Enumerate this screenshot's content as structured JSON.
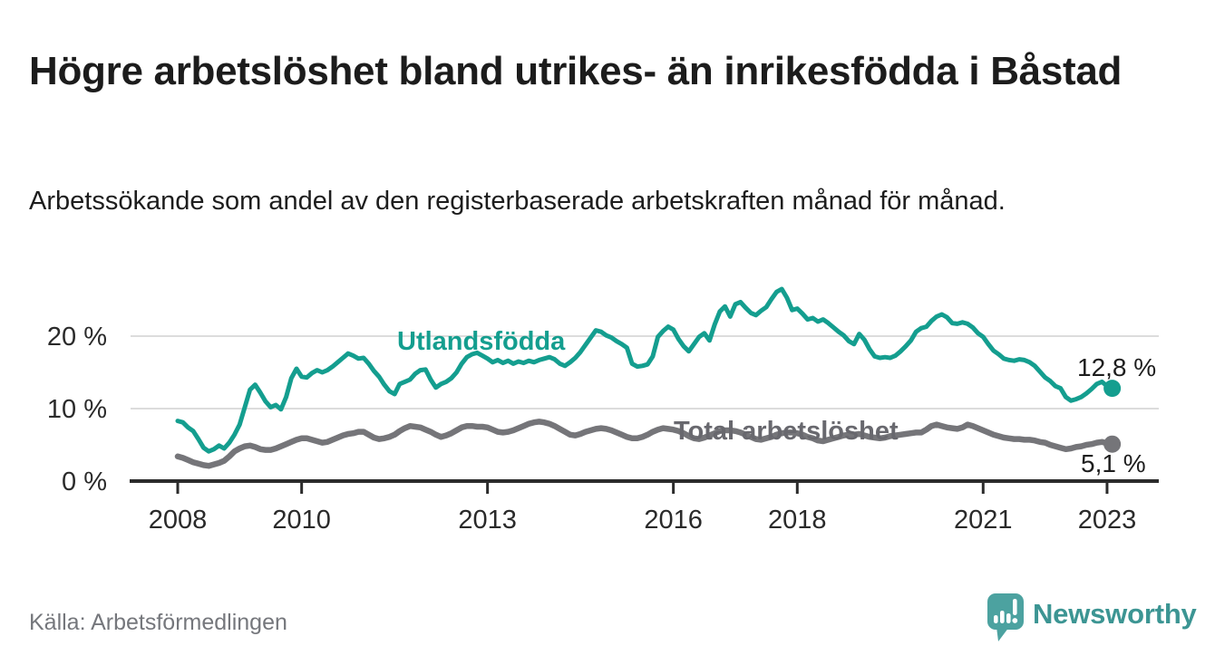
{
  "header": {
    "title": "Högre arbetslöshet bland utrikes- än inrikesfödda i Båstad",
    "subtitle": "Arbetssökande som andel av den registerbaserade arbetskraften månad för månad."
  },
  "footer": {
    "source": "Källa: Arbetsförmedlingen",
    "brand": "Newsworthy"
  },
  "colors": {
    "foreign_line": "#149e8f",
    "total_line": "#757579",
    "total_label": "#68686e",
    "grid": "#dcdcdc",
    "axis": "#2b2b2b",
    "value_label": "#1d1d1d",
    "brand_teal": "#4ca2a0",
    "brand_text": "#3c9593"
  },
  "chart_data": {
    "type": "line",
    "x_start": "2008-01",
    "x_end": "2023-02",
    "x_step": "1 month",
    "x_ticks": [
      2008,
      2010,
      2013,
      2016,
      2018,
      2021,
      2023
    ],
    "y_ticks": [
      {
        "value": 0,
        "label": "0 %"
      },
      {
        "value": 10,
        "label": "10 %"
      },
      {
        "value": 20,
        "label": "20 %"
      }
    ],
    "ylim": [
      0,
      27.5
    ],
    "grid": "horizontal-only",
    "legend": "inline-labels",
    "series": [
      {
        "name": "Utlandsfödda",
        "color": "#149e8f",
        "end_label": "12,8 %",
        "values": [
          8.3,
          8.1,
          7.4,
          6.9,
          5.8,
          4.6,
          4.1,
          4.4,
          4.9,
          4.5,
          5.3,
          6.4,
          7.8,
          10.2,
          12.6,
          13.3,
          12.2,
          11.0,
          10.2,
          10.5,
          9.9,
          11.6,
          14.2,
          15.5,
          14.4,
          14.3,
          14.9,
          15.3,
          15.0,
          15.3,
          15.8,
          16.4,
          17.0,
          17.6,
          17.3,
          16.9,
          17.0,
          16.2,
          15.2,
          14.4,
          13.3,
          12.4,
          12.0,
          13.4,
          13.7,
          14.0,
          14.8,
          15.3,
          15.4,
          14.0,
          12.9,
          13.4,
          13.7,
          14.2,
          15.0,
          16.2,
          17.1,
          17.5,
          17.7,
          17.3,
          16.9,
          16.4,
          16.7,
          16.3,
          16.6,
          16.2,
          16.5,
          16.3,
          16.6,
          16.4,
          16.7,
          16.9,
          17.1,
          16.8,
          16.2,
          15.9,
          16.4,
          17.0,
          17.8,
          18.8,
          19.8,
          20.8,
          20.6,
          20.1,
          19.8,
          19.3,
          18.9,
          18.4,
          16.2,
          15.8,
          15.9,
          16.1,
          17.2,
          19.9,
          20.7,
          21.3,
          20.9,
          19.6,
          18.6,
          17.9,
          18.9,
          19.9,
          20.4,
          19.4,
          21.6,
          23.4,
          24.1,
          22.7,
          24.4,
          24.7,
          23.9,
          23.2,
          22.9,
          23.5,
          24.0,
          25.1,
          26.1,
          26.5,
          25.3,
          23.6,
          23.8,
          23.1,
          22.3,
          22.5,
          22.0,
          22.3,
          21.8,
          21.2,
          20.6,
          20.1,
          19.3,
          18.9,
          20.3,
          19.5,
          18.2,
          17.2,
          17.0,
          17.1,
          17.0,
          17.3,
          17.9,
          18.6,
          19.4,
          20.6,
          21.1,
          21.3,
          22.1,
          22.7,
          23.0,
          22.6,
          21.8,
          21.7,
          21.9,
          21.7,
          21.2,
          20.4,
          19.9,
          18.9,
          18.0,
          17.5,
          16.9,
          16.7,
          16.6,
          16.8,
          16.7,
          16.4,
          15.9,
          15.1,
          14.3,
          13.8,
          13.1,
          12.8,
          11.6,
          11.1,
          11.3,
          11.6,
          12.1,
          12.7,
          13.4,
          13.7,
          13.1,
          12.8
        ]
      },
      {
        "name": "Total arbetslöshet",
        "color": "#757579",
        "end_label": "5,1 %",
        "values": [
          3.4,
          3.2,
          2.9,
          2.6,
          2.4,
          2.2,
          2.1,
          2.3,
          2.5,
          2.8,
          3.4,
          4.1,
          4.5,
          4.8,
          4.9,
          4.7,
          4.4,
          4.3,
          4.3,
          4.5,
          4.8,
          5.1,
          5.4,
          5.7,
          5.9,
          5.9,
          5.7,
          5.5,
          5.3,
          5.4,
          5.7,
          6.0,
          6.3,
          6.5,
          6.6,
          6.8,
          6.8,
          6.4,
          6.0,
          5.8,
          5.9,
          6.1,
          6.4,
          6.9,
          7.3,
          7.6,
          7.5,
          7.4,
          7.1,
          6.8,
          6.4,
          6.1,
          6.3,
          6.6,
          7.0,
          7.4,
          7.6,
          7.6,
          7.5,
          7.5,
          7.4,
          7.1,
          6.8,
          6.7,
          6.8,
          7.0,
          7.3,
          7.6,
          7.9,
          8.1,
          8.2,
          8.1,
          7.9,
          7.6,
          7.2,
          6.8,
          6.4,
          6.3,
          6.5,
          6.8,
          7.0,
          7.2,
          7.3,
          7.2,
          7.0,
          6.7,
          6.4,
          6.1,
          5.9,
          5.9,
          6.1,
          6.4,
          6.8,
          7.1,
          7.3,
          7.2,
          7.1,
          6.9,
          6.6,
          6.2,
          5.9,
          5.8,
          6.0,
          6.3,
          6.6,
          6.9,
          7.0,
          7.0,
          6.9,
          6.7,
          6.4,
          6.1,
          5.8,
          5.7,
          5.9,
          6.1,
          6.4,
          6.6,
          6.7,
          6.7,
          6.6,
          6.4,
          6.1,
          5.9,
          5.6,
          5.5,
          5.7,
          5.9,
          6.1,
          6.3,
          6.4,
          6.4,
          6.5,
          6.3,
          6.1,
          6.0,
          5.9,
          6.0,
          6.2,
          6.3,
          6.4,
          6.5,
          6.6,
          6.7,
          6.7,
          7.1,
          7.6,
          7.8,
          7.6,
          7.4,
          7.3,
          7.2,
          7.4,
          7.8,
          7.6,
          7.3,
          7.0,
          6.7,
          6.4,
          6.2,
          6.0,
          5.9,
          5.8,
          5.8,
          5.7,
          5.7,
          5.6,
          5.4,
          5.3,
          5.0,
          4.8,
          4.6,
          4.4,
          4.5,
          4.7,
          4.8,
          5.0,
          5.1,
          5.3,
          5.4,
          5.2,
          5.1
        ]
      }
    ]
  }
}
